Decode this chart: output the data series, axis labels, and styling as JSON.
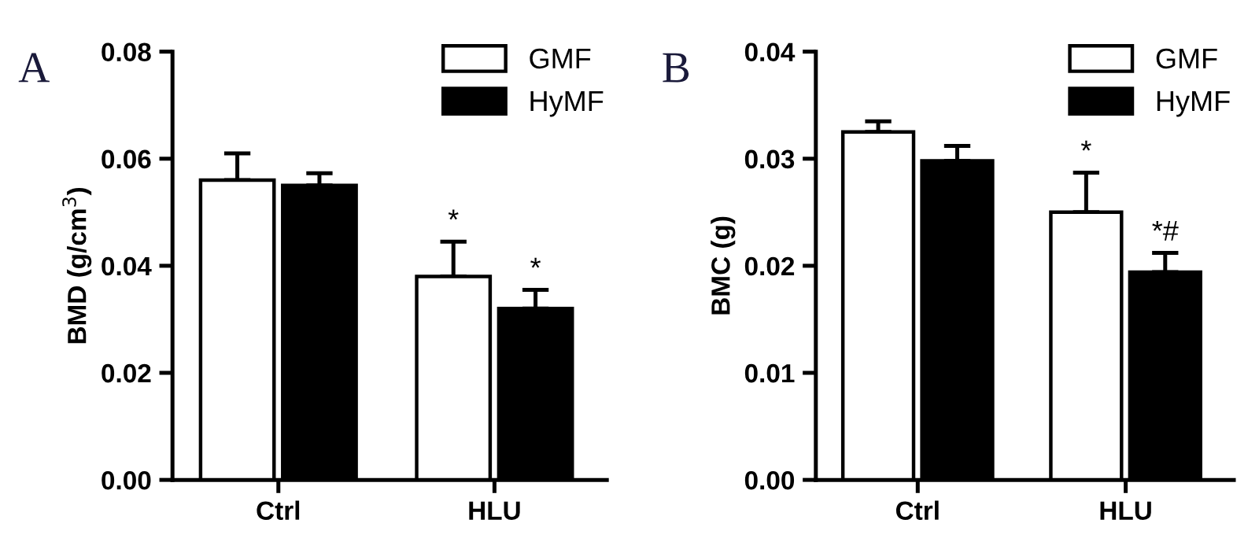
{
  "chart_data": [
    {
      "type": "bar",
      "title": "A",
      "ylabel": "BMD (g/cm$^{3}$)",
      "categories": [
        "Ctrl",
        "HLU"
      ],
      "ylim": [
        0,
        0.08
      ],
      "yticks": [
        {
          "value": 0,
          "label": "0.00"
        },
        {
          "value": 0.02,
          "label": "0.02"
        },
        {
          "value": 0.04,
          "label": "0.04"
        },
        {
          "value": 0.06,
          "label": "0.06"
        },
        {
          "value": 0.08,
          "label": "0.08"
        }
      ],
      "grid": false,
      "legend": "top right",
      "series": [
        {
          "name": "GMF",
          "color": "#ffffff",
          "values": [
            0.056,
            0.038
          ],
          "errors": [
            [
              0.056,
              0.061
            ],
            [
              0.038,
              0.0445
            ]
          ],
          "value_labels": [
            null,
            "*"
          ]
        },
        {
          "name": "HyMF",
          "color": "#000000",
          "values": [
            0.055,
            0.032
          ],
          "errors": [
            [
              0.055,
              0.0573
            ],
            [
              0.032,
              0.0355
            ]
          ],
          "value_labels": [
            null,
            "*"
          ]
        }
      ]
    },
    {
      "type": "bar",
      "title": "B",
      "ylabel": "BMC (g)",
      "categories": [
        "Ctrl",
        "HLU"
      ],
      "ylim": [
        0,
        0.04
      ],
      "yticks": [
        {
          "value": 0,
          "label": "0.00"
        },
        {
          "value": 0.01,
          "label": "0.01"
        },
        {
          "value": 0.02,
          "label": "0.02"
        },
        {
          "value": 0.03,
          "label": "0.03"
        },
        {
          "value": 0.04,
          "label": "0.04"
        }
      ],
      "grid": false,
      "legend": "top right",
      "series": [
        {
          "name": "GMF",
          "color": "#ffffff",
          "values": [
            0.0325,
            0.025
          ],
          "errors": [
            [
              0.0325,
              0.0335
            ],
            [
              0.025,
              0.0287
            ]
          ],
          "value_labels": [
            null,
            "*"
          ]
        },
        {
          "name": "HyMF",
          "color": "#000000",
          "values": [
            0.0298,
            0.0194
          ],
          "errors": [
            [
              0.0298,
              0.0312
            ],
            [
              0.0194,
              0.0212
            ]
          ],
          "value_labels": [
            null,
            "*#"
          ]
        }
      ]
    }
  ]
}
